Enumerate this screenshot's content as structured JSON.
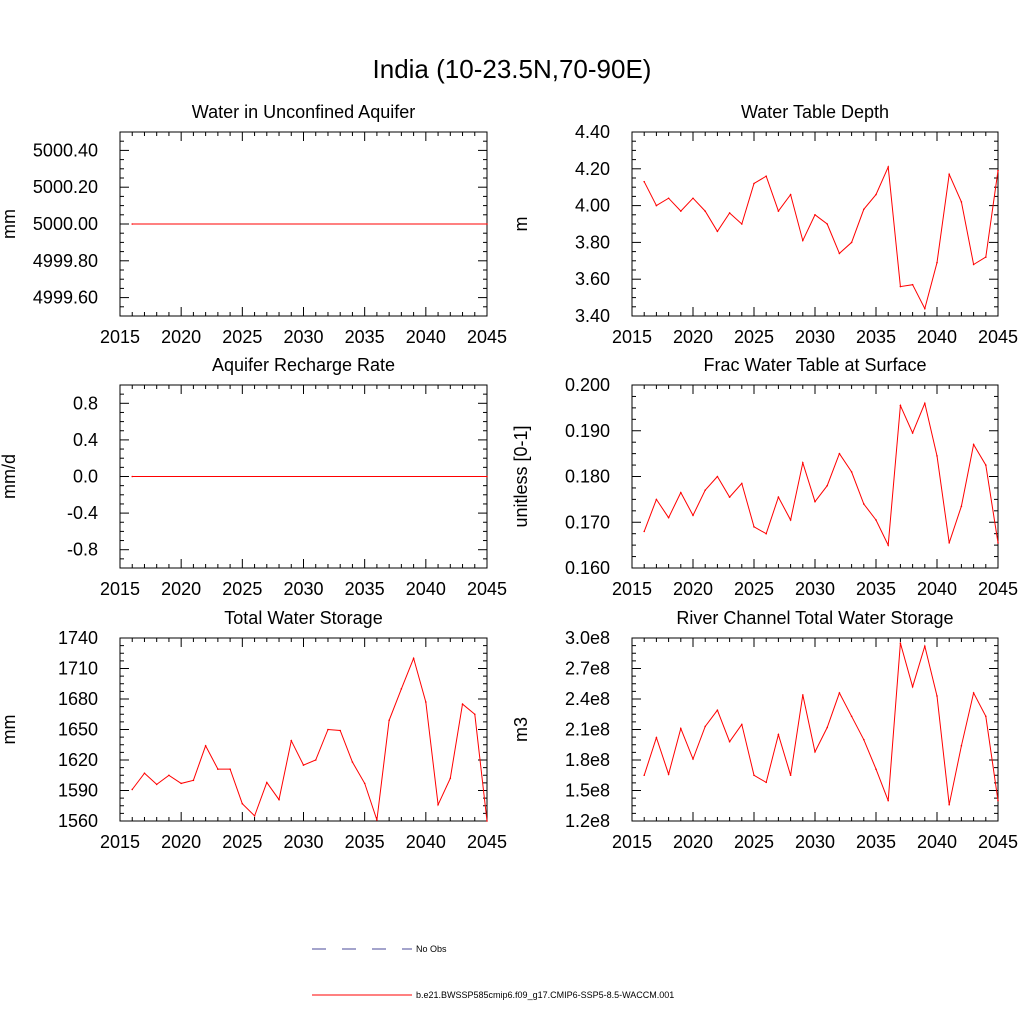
{
  "figure": {
    "title": "India (10-23.5N,70-90E)",
    "line_color": "#ff0000",
    "obs_line_color": "#4a4a9a"
  },
  "legend": {
    "entries": [
      {
        "label": "No Obs",
        "style": "dashed",
        "color": "#4a4a9a"
      },
      {
        "label": "b.e21.BWSSP585cmip6.f09_g17.CMIP6-SSP5-8.5-WACCM.001",
        "style": "solid",
        "color": "#ff0000"
      }
    ]
  },
  "chart_data": [
    {
      "type": "line",
      "title": "Water in Unconfined Aquifer",
      "ylabel": "mm",
      "xlim": [
        2015,
        2045
      ],
      "ylim": [
        4999.5,
        5000.5
      ],
      "xticks": [
        "2015",
        "2020",
        "2025",
        "2030",
        "2035",
        "2040",
        "2045"
      ],
      "yticks": [
        "4999.60",
        "4999.80",
        "5000.00",
        "5000.20",
        "5000.40"
      ],
      "x": [
        2016,
        2045
      ],
      "values": [
        5000.0,
        5000.0
      ]
    },
    {
      "type": "line",
      "title": "Water Table Depth",
      "ylabel": "m",
      "xlim": [
        2015,
        2045
      ],
      "ylim": [
        3.4,
        4.4
      ],
      "xticks": [
        "2015",
        "2020",
        "2025",
        "2030",
        "2035",
        "2040",
        "2045"
      ],
      "yticks": [
        "3.40",
        "3.60",
        "3.80",
        "4.00",
        "4.20",
        "4.40"
      ],
      "x": [
        2016,
        2017,
        2018,
        2019,
        2020,
        2021,
        2022,
        2023,
        2024,
        2025,
        2026,
        2027,
        2028,
        2029,
        2030,
        2031,
        2032,
        2033,
        2034,
        2035,
        2036,
        2037,
        2038,
        2039,
        2040,
        2041,
        2042,
        2043,
        2044,
        2045
      ],
      "values": [
        4.13,
        4.0,
        4.04,
        3.97,
        4.04,
        3.97,
        3.86,
        3.96,
        3.9,
        4.12,
        4.16,
        3.97,
        4.06,
        3.81,
        3.95,
        3.9,
        3.74,
        3.8,
        3.98,
        4.06,
        4.21,
        3.56,
        3.57,
        3.44,
        3.69,
        4.17,
        4.02,
        3.68,
        3.72,
        4.19
      ]
    },
    {
      "type": "line",
      "title": "Aquifer Recharge Rate",
      "ylabel": "mm/d",
      "xlim": [
        2015,
        2045
      ],
      "ylim": [
        -1.0,
        1.0
      ],
      "xticks": [
        "2015",
        "2020",
        "2025",
        "2030",
        "2035",
        "2040",
        "2045"
      ],
      "yticks": [
        "-0.8",
        "-0.4",
        "0.0",
        "0.4",
        "0.8"
      ],
      "x": [
        2016,
        2045
      ],
      "values": [
        0.0,
        0.0
      ]
    },
    {
      "type": "line",
      "title": "Frac Water Table at Surface",
      "ylabel": "unitless [0-1]",
      "xlim": [
        2015,
        2045
      ],
      "ylim": [
        0.16,
        0.2
      ],
      "xticks": [
        "2015",
        "2020",
        "2025",
        "2030",
        "2035",
        "2040",
        "2045"
      ],
      "yticks": [
        "0.160",
        "0.170",
        "0.180",
        "0.190",
        "0.200"
      ],
      "x": [
        2016,
        2017,
        2018,
        2019,
        2020,
        2021,
        2022,
        2023,
        2024,
        2025,
        2026,
        2027,
        2028,
        2029,
        2030,
        2031,
        2032,
        2033,
        2034,
        2035,
        2036,
        2037,
        2038,
        2039,
        2040,
        2041,
        2042,
        2043,
        2044,
        2045
      ],
      "values": [
        0.168,
        0.175,
        0.171,
        0.1765,
        0.1715,
        0.177,
        0.18,
        0.1755,
        0.1785,
        0.169,
        0.1675,
        0.1755,
        0.1705,
        0.183,
        0.1745,
        0.178,
        0.185,
        0.181,
        0.174,
        0.1705,
        0.165,
        0.1955,
        0.1895,
        0.196,
        0.1845,
        0.1655,
        0.1735,
        0.187,
        0.1825,
        0.1655
      ]
    },
    {
      "type": "line",
      "title": "Total Water Storage",
      "ylabel": "mm",
      "xlim": [
        2015,
        2045
      ],
      "ylim": [
        1560,
        1740
      ],
      "xticks": [
        "2015",
        "2020",
        "2025",
        "2030",
        "2035",
        "2040",
        "2045"
      ],
      "yticks": [
        "1560",
        "1590",
        "1620",
        "1650",
        "1680",
        "1710",
        "1740"
      ],
      "x": [
        2016,
        2017,
        2018,
        2019,
        2020,
        2021,
        2022,
        2023,
        2024,
        2025,
        2026,
        2027,
        2028,
        2029,
        2030,
        2031,
        2032,
        2033,
        2034,
        2035,
        2036,
        2037,
        2038,
        2039,
        2040,
        2041,
        2042,
        2043,
        2044,
        2045
      ],
      "values": [
        1591,
        1607,
        1596,
        1605,
        1597,
        1600,
        1634,
        1611,
        1611,
        1577,
        1565,
        1598,
        1581,
        1639,
        1615,
        1620,
        1650,
        1649,
        1618,
        1597,
        1561,
        1659,
        1690,
        1720,
        1677,
        1576,
        1602,
        1675,
        1665,
        1560
      ]
    },
    {
      "type": "line",
      "title": "River Channel Total Water Storage",
      "ylabel": "m3",
      "xlim": [
        2015,
        2045
      ],
      "ylim": [
        120000000,
        300000000
      ],
      "xticks": [
        "2015",
        "2020",
        "2025",
        "2030",
        "2035",
        "2040",
        "2045"
      ],
      "yticks": [
        "1.2e8",
        "1.5e8",
        "1.8e8",
        "2.1e8",
        "2.4e8",
        "2.7e8",
        "3.0e8"
      ],
      "x": [
        2016,
        2017,
        2018,
        2019,
        2020,
        2021,
        2022,
        2023,
        2024,
        2025,
        2026,
        2027,
        2028,
        2029,
        2030,
        2031,
        2032,
        2033,
        2034,
        2035,
        2036,
        2037,
        2038,
        2039,
        2040,
        2041,
        2042,
        2043,
        2044,
        2045
      ],
      "values": [
        165000000,
        202000000,
        166000000,
        211000000,
        181000000,
        213000000,
        229000000,
        198000000,
        215000000,
        165000000,
        158000000,
        205000000,
        165000000,
        244000000,
        188000000,
        212000000,
        246000000,
        223000000,
        200000000,
        171000000,
        140000000,
        295000000,
        252000000,
        292000000,
        243000000,
        136000000,
        194000000,
        246000000,
        223000000,
        140000000
      ]
    }
  ]
}
